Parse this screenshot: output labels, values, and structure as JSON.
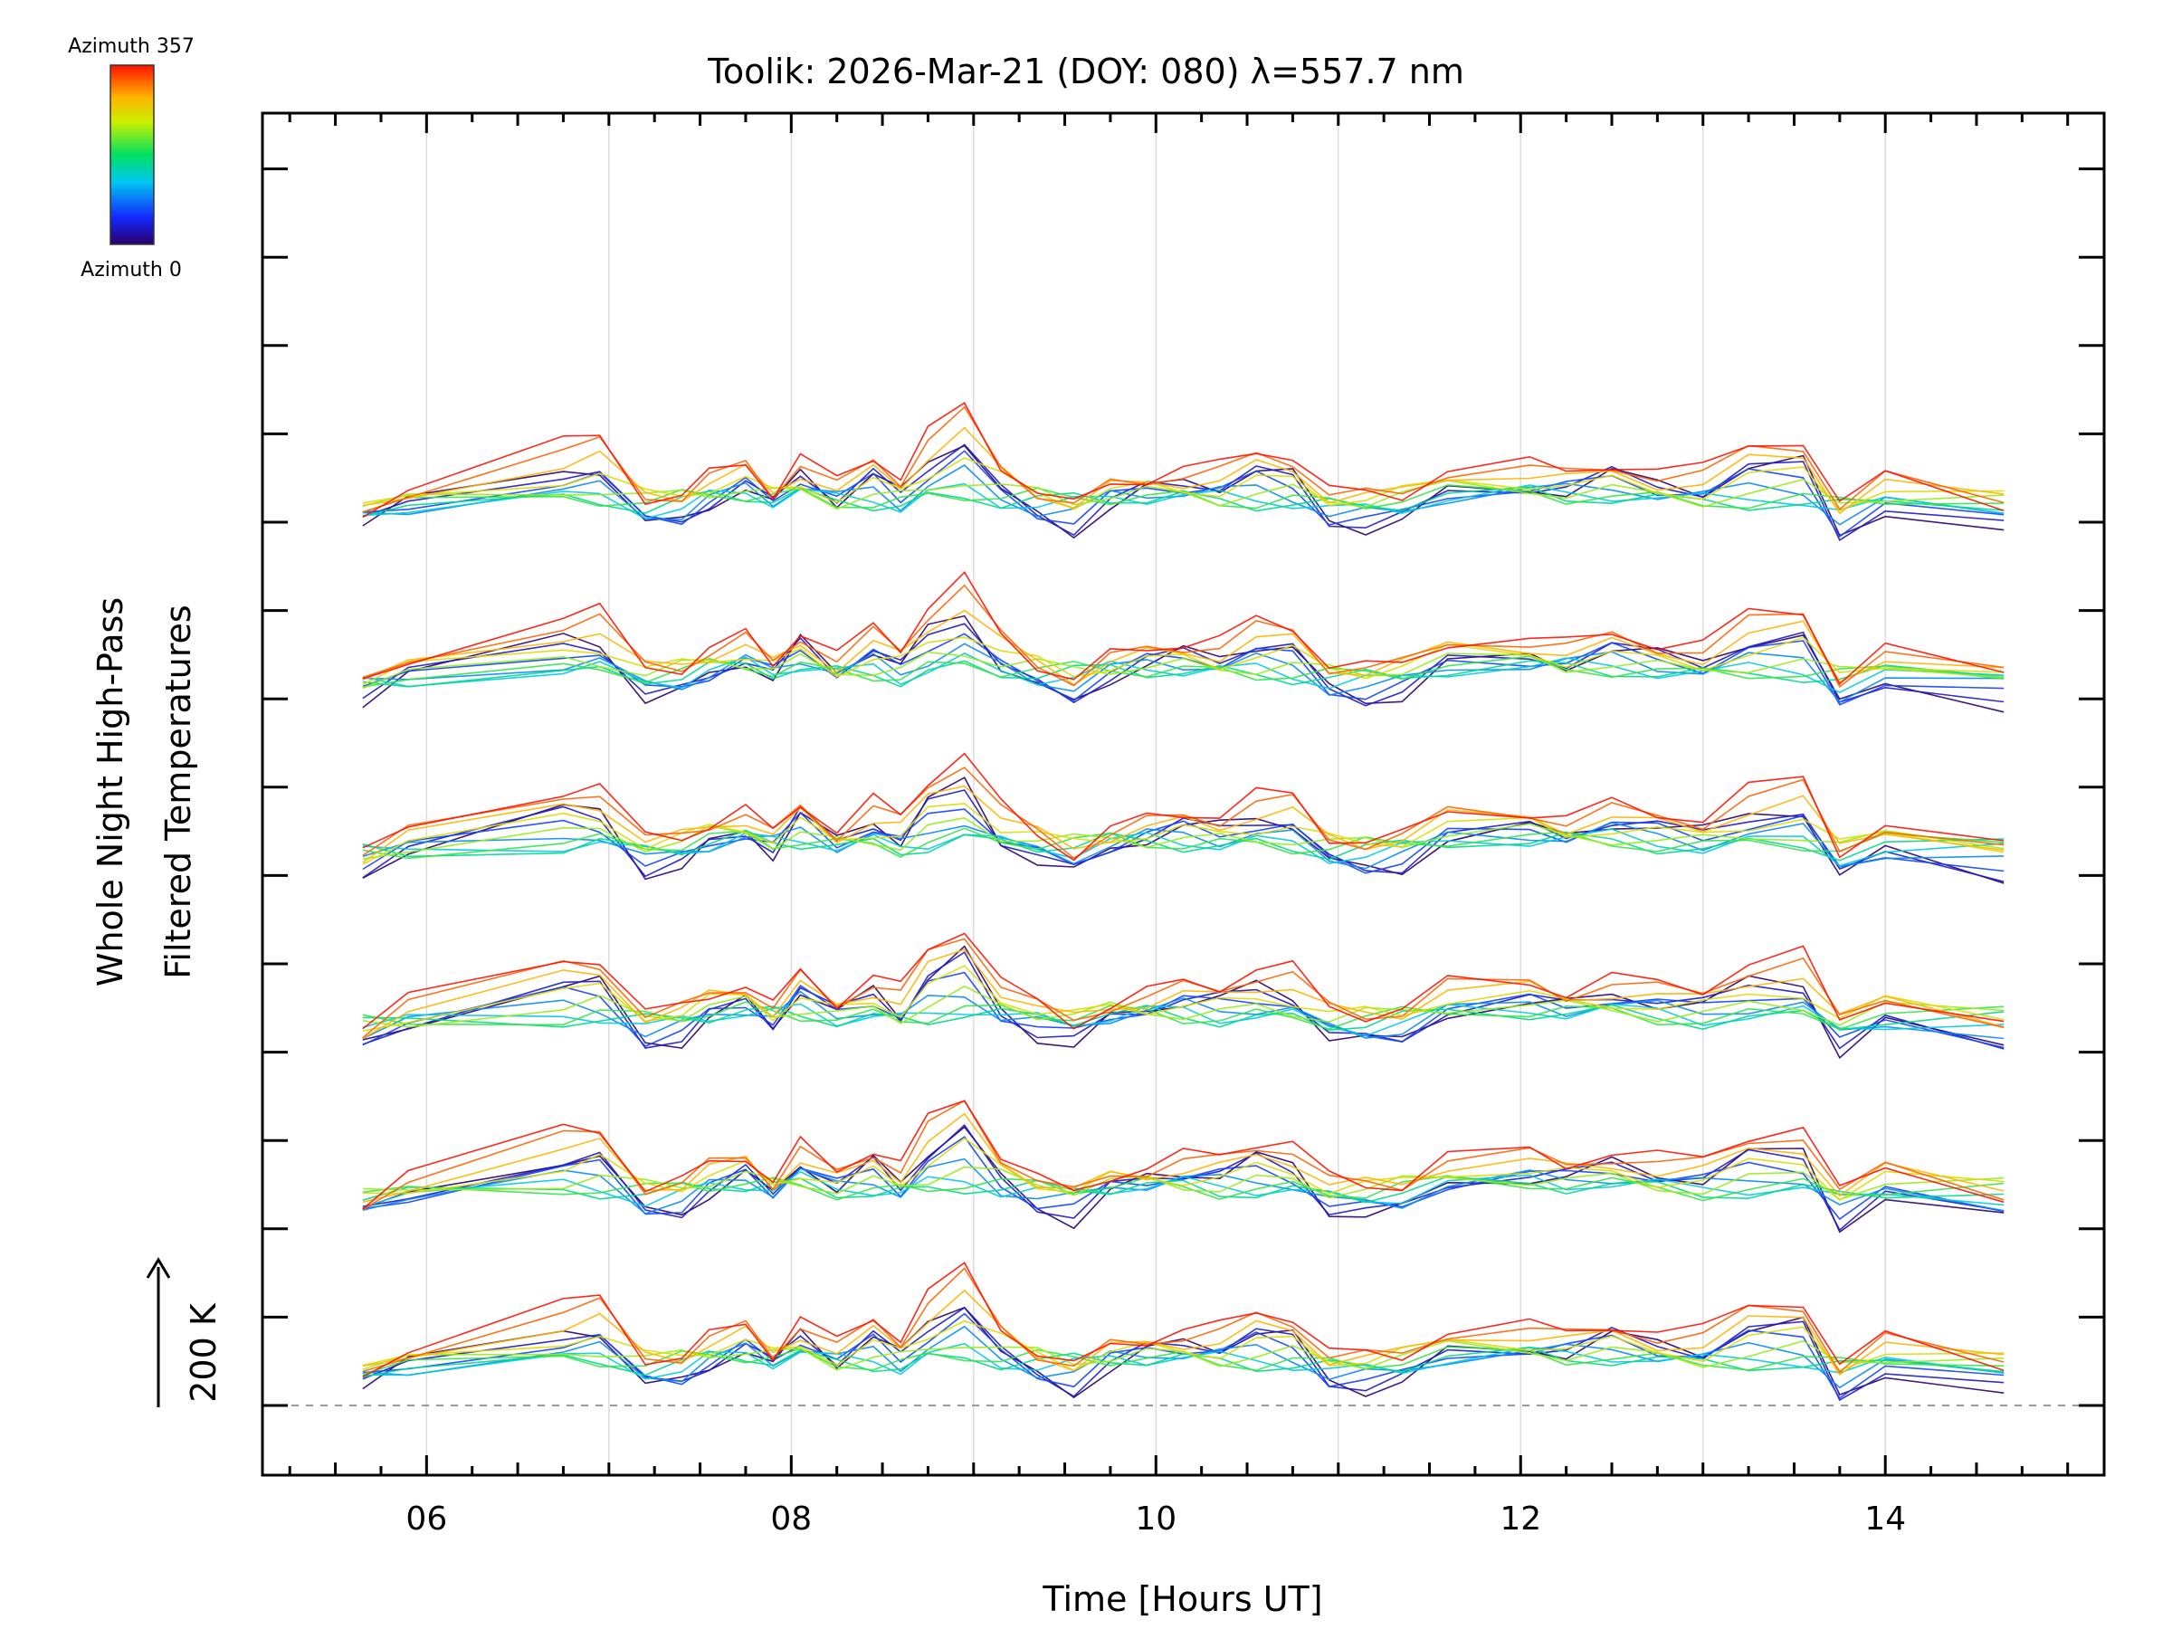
{
  "chart_data": {
    "type": "line",
    "title": "Toolik: 2026-Mar-21 (DOY: 080) λ=557.7 nm",
    "xlabel": "Time [Hours UT]",
    "ylabel_line1": "Whole Night High-Pass",
    "ylabel_line2": "Filtered Temperatures",
    "scale_label": "200 K",
    "xlim": [
      5.1,
      15.2
    ],
    "x_ticks": [
      6,
      8,
      10,
      12,
      14
    ],
    "x_tick_labels": [
      "06",
      "08",
      "10",
      "12",
      "14"
    ],
    "color_legend": {
      "top": "Azimuth 357",
      "bottom": "Azimuth 0"
    },
    "stacked_offset_k": 200,
    "zenith_bands": 6,
    "azimuth_count": 12,
    "time_samples": [
      5.65,
      5.9,
      6.75,
      6.95,
      7.2,
      7.4,
      7.55,
      7.75,
      7.9,
      8.05,
      8.25,
      8.45,
      8.6,
      8.75,
      8.95,
      9.15,
      9.35,
      9.55,
      9.75,
      9.95,
      10.15,
      10.35,
      10.55,
      10.75,
      10.95,
      11.15,
      11.35,
      11.6,
      12.05,
      12.25,
      12.5,
      12.75,
      13.0,
      13.25,
      13.55,
      13.75,
      14.0,
      14.65
    ],
    "base_temperature_profile": [
      -40,
      10,
      90,
      95,
      -20,
      -10,
      30,
      60,
      10,
      80,
      20,
      70,
      30,
      110,
      160,
      50,
      0,
      -30,
      20,
      40,
      55,
      50,
      80,
      70,
      -10,
      -20,
      -10,
      50,
      60,
      45,
      70,
      50,
      40,
      90,
      100,
      -40,
      20,
      -30
    ]
  }
}
